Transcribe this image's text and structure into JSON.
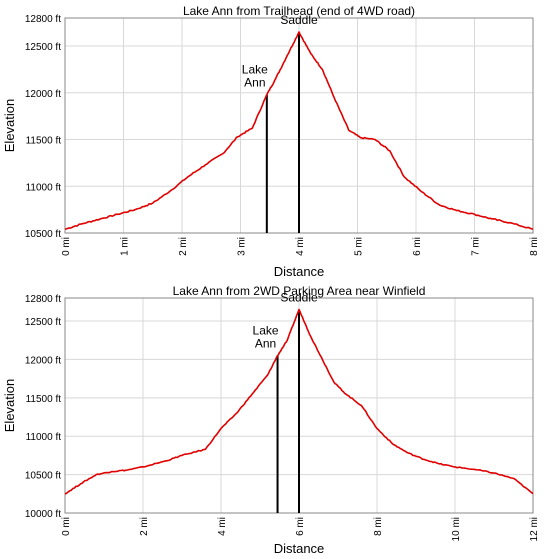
{
  "chart_data": [
    {
      "type": "line",
      "title": "Lake Ann from Trailhead (end of 4WD road)",
      "xlabel": "Distance",
      "ylabel": "Elevation",
      "xlim": [
        0,
        8
      ],
      "ylim": [
        10500,
        12800
      ],
      "xticks": [
        0,
        1,
        2,
        3,
        4,
        5,
        6,
        7,
        8
      ],
      "xtick_labels": [
        "0 mi",
        "1 mi",
        "2 mi",
        "3 mi",
        "4 mi",
        "5 mi",
        "6 mi",
        "7 mi",
        "8 mi"
      ],
      "yticks": [
        10500,
        11000,
        11500,
        12000,
        12500,
        12800
      ],
      "ytick_labels": [
        "10500 ft",
        "11000 ft",
        "11500 ft",
        "12000 ft",
        "12500 ft",
        "12800 ft"
      ],
      "grid": true,
      "series_color": "#e00000",
      "x": [
        0,
        0.3,
        0.6,
        0.9,
        1.2,
        1.5,
        1.8,
        2.1,
        2.4,
        2.7,
        2.95,
        3.2,
        3.45,
        3.6,
        3.8,
        4.0,
        4.2,
        4.4,
        4.6,
        4.85,
        5.05,
        5.3,
        5.55,
        5.8,
        6.1,
        6.4,
        6.7,
        7.0,
        7.3,
        7.6,
        8.0
      ],
      "y": [
        10540,
        10600,
        10650,
        10700,
        10750,
        10820,
        10950,
        11100,
        11230,
        11350,
        11530,
        11620,
        11980,
        12150,
        12400,
        12650,
        12420,
        12250,
        11950,
        11600,
        11520,
        11500,
        11380,
        11100,
        10940,
        10800,
        10740,
        10700,
        10650,
        10610,
        10540
      ],
      "markers": [
        {
          "x": 3.45,
          "y": 11980,
          "label_lines": [
            "Lake",
            "Ann"
          ]
        },
        {
          "x": 4.0,
          "y": 12650,
          "label_lines": [
            "Saddle"
          ]
        }
      ]
    },
    {
      "type": "line",
      "title": "Lake Ann from 2WD Parking Area near Winfield",
      "xlabel": "Distance",
      "ylabel": "Elevation",
      "xlim": [
        0,
        12
      ],
      "ylim": [
        10000,
        12800
      ],
      "xticks": [
        0,
        2,
        4,
        6,
        8,
        10,
        12
      ],
      "xtick_labels": [
        "0 mi",
        "2 mi",
        "4 mi",
        "6 mi",
        "8 mi",
        "10 mi",
        "12 mi"
      ],
      "yticks": [
        10000,
        10500,
        11000,
        11500,
        12000,
        12500,
        12800
      ],
      "ytick_labels": [
        "10000 ft",
        "10500 ft",
        "11000 ft",
        "11500 ft",
        "12000 ft",
        "12500 ft",
        "12800 ft"
      ],
      "grid": true,
      "series_color": "#e00000",
      "x": [
        0,
        0.4,
        0.8,
        1.2,
        1.6,
        2.0,
        2.6,
        3.0,
        3.6,
        4.0,
        4.4,
        4.8,
        5.2,
        5.45,
        5.7,
        6.0,
        6.3,
        6.6,
        6.9,
        7.2,
        7.6,
        8.0,
        8.4,
        8.8,
        9.2,
        9.6,
        10.0,
        10.6,
        11.0,
        11.5,
        12.0
      ],
      "y": [
        10250,
        10380,
        10500,
        10540,
        10560,
        10600,
        10680,
        10750,
        10830,
        11100,
        11300,
        11550,
        11800,
        12050,
        12250,
        12650,
        12300,
        12000,
        11700,
        11550,
        11400,
        11100,
        10900,
        10780,
        10700,
        10640,
        10600,
        10560,
        10520,
        10450,
        10250
      ],
      "markers": [
        {
          "x": 5.45,
          "y": 12050,
          "label_lines": [
            "Lake",
            "Ann"
          ]
        },
        {
          "x": 6.0,
          "y": 12650,
          "label_lines": [
            "Saddle"
          ]
        }
      ]
    }
  ]
}
